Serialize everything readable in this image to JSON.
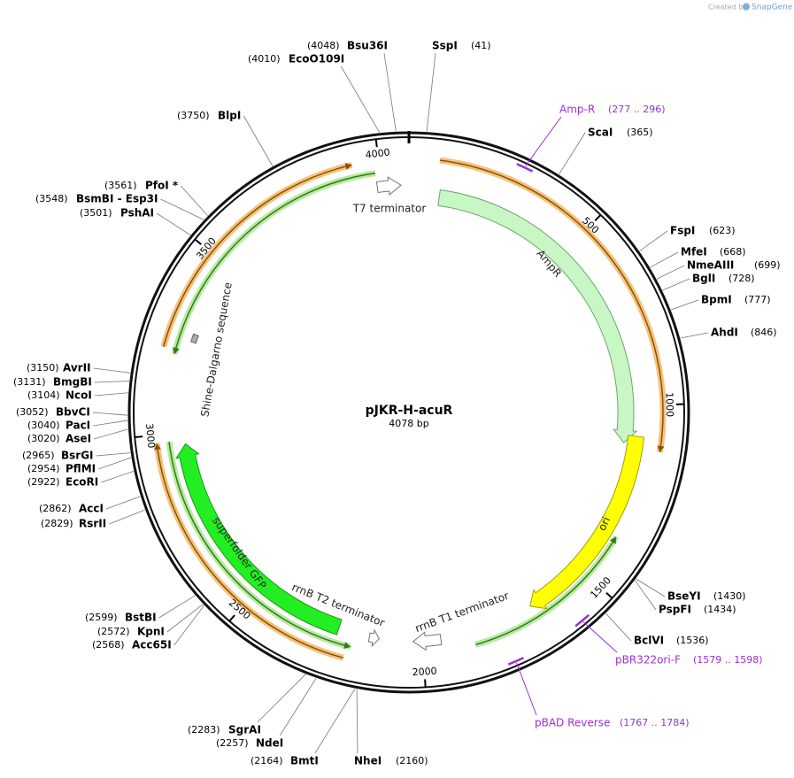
{
  "credit": {
    "prefix": "Created by",
    "brand": "SnapGene"
  },
  "plasmid": {
    "name": "pJKR-H-acuR",
    "length": "4078 bp"
  },
  "ticks": [
    "500",
    "1000",
    "1500",
    "2000",
    "2500",
    "3000",
    "3500",
    "4000"
  ],
  "sites": [
    {
      "name": "Bsu36I",
      "position": "(4048)"
    },
    {
      "name": "SspI",
      "position": "(41)"
    },
    {
      "name": "EcoO109I",
      "position": "(4010)"
    },
    {
      "name": "BlpI",
      "position": "(3750)"
    },
    {
      "name": "ScaI",
      "position": "(365)"
    },
    {
      "name": "PfoI *",
      "position": "(3561)"
    },
    {
      "name": "BsmBI - Esp3I",
      "position": "(3548)"
    },
    {
      "name": "PshAI",
      "position": "(3501)"
    },
    {
      "name": "FspI",
      "position": "(623)"
    },
    {
      "name": "MfeI",
      "position": "(668)"
    },
    {
      "name": "NmeAIII",
      "position": "(699)"
    },
    {
      "name": "BglI",
      "position": "(728)"
    },
    {
      "name": "BpmI",
      "position": "(777)"
    },
    {
      "name": "AhdI",
      "position": "(846)"
    },
    {
      "name": "AvrII",
      "position": "(3150)"
    },
    {
      "name": "BmgBI",
      "position": "(3131)"
    },
    {
      "name": "NcoI",
      "position": "(3104)"
    },
    {
      "name": "BbvCI",
      "position": "(3052)"
    },
    {
      "name": "PacI",
      "position": "(3040)"
    },
    {
      "name": "AseI",
      "position": "(3020)"
    },
    {
      "name": "BsrGI",
      "position": "(2965)"
    },
    {
      "name": "PflMI",
      "position": "(2954)"
    },
    {
      "name": "EcoRI",
      "position": "(2922)"
    },
    {
      "name": "AccI",
      "position": "(2862)"
    },
    {
      "name": "RsrII",
      "position": "(2829)"
    },
    {
      "name": "BseYI",
      "position": "(1430)"
    },
    {
      "name": "PspFI",
      "position": "(1434)"
    },
    {
      "name": "BclVI",
      "position": "(1536)"
    },
    {
      "name": "BstBI",
      "position": "(2599)"
    },
    {
      "name": "KpnI",
      "position": "(2572)"
    },
    {
      "name": "Acc65I",
      "position": "(2568)"
    },
    {
      "name": "SgrAI",
      "position": "(2283)"
    },
    {
      "name": "NdeI",
      "position": "(2257)"
    },
    {
      "name": "BmtI",
      "position": "(2164)"
    },
    {
      "name": "NheI",
      "position": "(2160)"
    }
  ],
  "features": [
    "AmpR",
    "ori",
    "T7 terminator",
    "rrnB T1 terminator",
    "rrnB T2 terminator",
    "superfolder GFP",
    "Shine-Dalgarno sequence"
  ],
  "primers": [
    {
      "name": "Amp-R",
      "range": "(277 .. 296)"
    },
    {
      "name": "pBR322ori-F",
      "range": "(1579 .. 1598)"
    },
    {
      "name": "pBAD Reverse",
      "range": "(1767 .. 1784)"
    }
  ]
}
